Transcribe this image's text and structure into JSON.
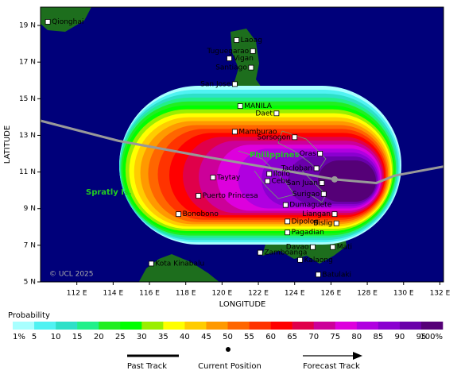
{
  "map": {
    "lonlim": [
      110,
      132.2
    ],
    "latlim": [
      5,
      20
    ],
    "xticks": [
      {
        "value": 112,
        "label": "112 E"
      },
      {
        "value": 114,
        "label": "114 E"
      },
      {
        "value": 116,
        "label": "116 E"
      },
      {
        "value": 118,
        "label": "118 E"
      },
      {
        "value": 120,
        "label": "120 E"
      },
      {
        "value": 122,
        "label": "122 E"
      },
      {
        "value": 124,
        "label": "124 E"
      },
      {
        "value": 126,
        "label": "126 E"
      },
      {
        "value": 128,
        "label": "128 E"
      },
      {
        "value": 130,
        "label": "130 E"
      },
      {
        "value": 132,
        "label": "132 E"
      }
    ],
    "yticks": [
      {
        "value": 5,
        "label": "5 N"
      },
      {
        "value": 7,
        "label": "7 N"
      },
      {
        "value": 9,
        "label": "9 N"
      },
      {
        "value": 11,
        "label": "11 N"
      },
      {
        "value": 13,
        "label": "13 N"
      },
      {
        "value": 15,
        "label": "15 N"
      },
      {
        "value": 17,
        "label": "17 N"
      },
      {
        "value": 19,
        "label": "19 N"
      }
    ],
    "xlabel": "LONGITUDE",
    "ylabel": "LATITUDE",
    "sea_color": "#00007a",
    "land_color": "#1d6e1d",
    "track_color": "#999999",
    "country_label": "Philippines",
    "island_label": "Spratly Is.",
    "credit": "© UCL 2025",
    "cities": [
      {
        "name": "Qionghai",
        "lon": 110.4,
        "lat": 19.2,
        "label": "right"
      },
      {
        "name": "Laoag",
        "lon": 120.8,
        "lat": 18.2,
        "label": "right"
      },
      {
        "name": "Tuguegarao",
        "lon": 121.7,
        "lat": 17.6,
        "label": "left"
      },
      {
        "name": "Vigan",
        "lon": 120.4,
        "lat": 17.2,
        "label": "right"
      },
      {
        "name": "Santiago",
        "lon": 121.6,
        "lat": 16.7,
        "label": "left"
      },
      {
        "name": "San Jose",
        "lon": 120.7,
        "lat": 15.8,
        "label": "left"
      },
      {
        "name": "MANILA",
        "lon": 121.0,
        "lat": 14.6,
        "label": "right"
      },
      {
        "name": "Daet",
        "lon": 123.0,
        "lat": 14.2,
        "label": "left"
      },
      {
        "name": "Mamburao",
        "lon": 120.7,
        "lat": 13.2,
        "label": "right"
      },
      {
        "name": "Sorsogon",
        "lon": 124.0,
        "lat": 12.9,
        "label": "left"
      },
      {
        "name": "Oras",
        "lon": 125.4,
        "lat": 12.0,
        "label": "left"
      },
      {
        "name": "Tacloban",
        "lon": 125.2,
        "lat": 11.2,
        "label": "left"
      },
      {
        "name": "Iloilo",
        "lon": 122.6,
        "lat": 10.9,
        "label": "right"
      },
      {
        "name": "Cebu",
        "lon": 122.5,
        "lat": 10.5,
        "label": "right"
      },
      {
        "name": "San Juan",
        "lon": 125.5,
        "lat": 10.4,
        "label": "left"
      },
      {
        "name": "Taytay",
        "lon": 119.5,
        "lat": 10.7,
        "label": "right"
      },
      {
        "name": "Surigao",
        "lon": 125.6,
        "lat": 9.8,
        "label": "left"
      },
      {
        "name": "Puerto Princesa",
        "lon": 118.7,
        "lat": 9.7,
        "label": "right"
      },
      {
        "name": "Dumaguete",
        "lon": 123.5,
        "lat": 9.2,
        "label": "right"
      },
      {
        "name": "Liangan",
        "lon": 126.2,
        "lat": 8.7,
        "label": "left"
      },
      {
        "name": "Bonobono",
        "lon": 117.6,
        "lat": 8.7,
        "label": "right"
      },
      {
        "name": "Dipolog",
        "lon": 123.6,
        "lat": 8.3,
        "label": "right"
      },
      {
        "name": "Bislig",
        "lon": 126.3,
        "lat": 8.2,
        "label": "left"
      },
      {
        "name": "Pagadian",
        "lon": 123.6,
        "lat": 7.7,
        "label": "right"
      },
      {
        "name": "Davao",
        "lon": 125.0,
        "lat": 6.9,
        "label": "left"
      },
      {
        "name": "Mati",
        "lon": 126.1,
        "lat": 6.9,
        "label": "right"
      },
      {
        "name": "Zamboanga",
        "lon": 122.1,
        "lat": 6.6,
        "label": "right"
      },
      {
        "name": "Kalaong",
        "lon": 124.3,
        "lat": 6.2,
        "label": "right"
      },
      {
        "name": "Kota Kinabalu",
        "lon": 116.1,
        "lat": 6.0,
        "label": "right"
      },
      {
        "name": "Batulaki",
        "lon": 125.3,
        "lat": 5.4,
        "label": "right"
      }
    ],
    "past_track": {
      "lon": [
        110.0,
        114.3,
        118.7,
        122.2,
        126.2
      ],
      "lat": [
        13.8,
        12.7,
        11.9,
        11.3,
        10.6
      ]
    },
    "current_position": {
      "lon": 126.2,
      "lat": 10.6
    },
    "forecast_track": {
      "lon": [
        126.2,
        128.5,
        129.5,
        132.2
      ],
      "lat": [
        10.6,
        10.4,
        10.8,
        11.3
      ]
    }
  },
  "legend": {
    "title": "Probability",
    "labels": [
      "1%",
      "5",
      "10",
      "15",
      "20",
      "25",
      "30",
      "35",
      "40",
      "45",
      "50",
      "55",
      "60",
      "65",
      "70",
      "75",
      "80",
      "85",
      "90",
      "95",
      "100%"
    ],
    "colors": [
      "#a8ffff",
      "#50f2f2",
      "#2ee0c8",
      "#22f08a",
      "#22ee22",
      "#00ff00",
      "#9aee00",
      "#ffff00",
      "#ffcc00",
      "#ff9900",
      "#ff6600",
      "#ff3300",
      "#ff0000",
      "#e0004a",
      "#cc0099",
      "#dd00dd",
      "#b000e0",
      "#8a00d0",
      "#6a00aa",
      "#550077"
    ],
    "track_items": [
      "Past Track",
      "Current Position",
      "Forecast Track"
    ]
  }
}
